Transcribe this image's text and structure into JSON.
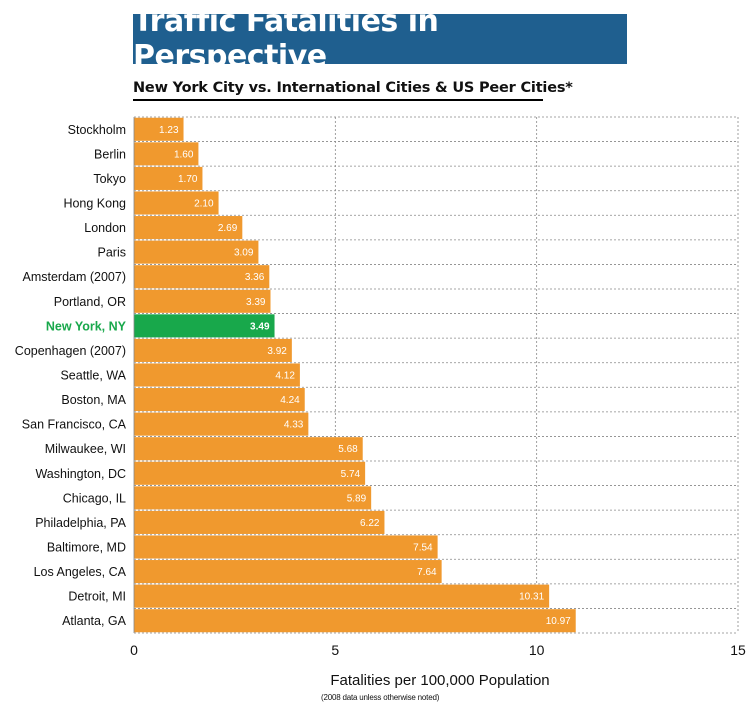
{
  "header": {
    "title": "Traffic Fatalities in Perspective",
    "subtitle": "New York City vs. International Cities & US Peer Cities*"
  },
  "footer": {
    "note": "(2008 data unless otherwise noted)"
  },
  "colors": {
    "bar": "#f0992e",
    "highlight": "#18a84b",
    "grid": "#888888",
    "title_bg": "#1f5f8f"
  },
  "chart_data": {
    "type": "bar",
    "orientation": "horizontal",
    "title": "Traffic Fatalities in Perspective",
    "subtitle": "New York City vs. International Cities & US Peer Cities*",
    "xlabel": "Fatalities per 100,000 Population",
    "ylabel": "",
    "xlim": [
      0,
      15
    ],
    "xticks": [
      0,
      5,
      10,
      15
    ],
    "grid": true,
    "highlight_category": "New York, NY",
    "categories": [
      "Stockholm",
      "Berlin",
      "Tokyo",
      "Hong Kong",
      "London",
      "Paris",
      "Amsterdam (2007)",
      "Portland, OR",
      "New York, NY",
      "Copenhagen (2007)",
      "Seattle, WA",
      "Boston, MA",
      "San Francisco, CA",
      "Milwaukee, WI",
      "Washington, DC",
      "Chicago, IL",
      "Philadelphia, PA",
      "Baltimore, MD",
      "Los Angeles, CA",
      "Detroit, MI",
      "Atlanta, GA"
    ],
    "values": [
      1.23,
      1.6,
      1.7,
      2.1,
      2.69,
      3.09,
      3.36,
      3.39,
      3.49,
      3.92,
      4.12,
      4.24,
      4.33,
      5.68,
      5.74,
      5.89,
      6.22,
      7.54,
      7.64,
      10.31,
      10.97
    ],
    "value_labels": [
      "1.23",
      "1.60",
      "1.70",
      "2.10",
      "2.69",
      "3.09",
      "3.36",
      "3.39",
      "3.49",
      "3.92",
      "4.12",
      "4.24",
      "4.33",
      "5.68",
      "5.74",
      "5.89",
      "6.22",
      "7.54",
      "7.64",
      "10.31",
      "10.97"
    ]
  }
}
